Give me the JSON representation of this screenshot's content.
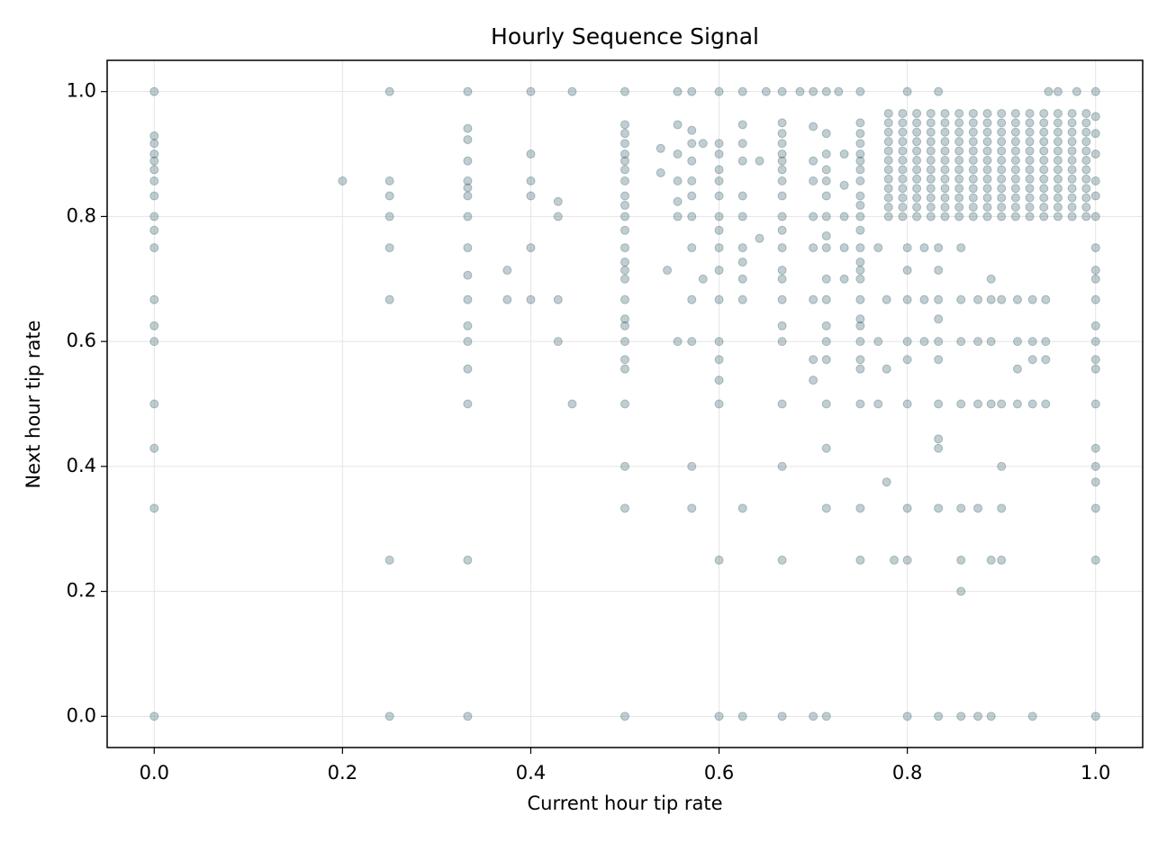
{
  "chart_data": {
    "type": "scatter",
    "title": "Hourly Sequence Signal",
    "x_label": "Current hour tip rate",
    "y_label": "Next hour tip rate",
    "color": "#335c67",
    "grid": true,
    "xlim": [
      -0.05,
      1.05
    ],
    "ylim": [
      -0.05,
      1.05
    ],
    "xticks": [
      {
        "value": 0,
        "label": "0.0"
      },
      0.2,
      0.4,
      0.6,
      0.8,
      {
        "value": 1,
        "label": "1.0"
      }
    ],
    "yticks": [
      {
        "value": 0,
        "label": "0.0"
      },
      0.2,
      0.4,
      0.6,
      0.8,
      {
        "value": 1,
        "label": "1.0"
      }
    ],
    "x": [
      0,
      0,
      0,
      0,
      0,
      0,
      0,
      0,
      0,
      0,
      0,
      0,
      0,
      0,
      0,
      0,
      0,
      0,
      0.2,
      0.25,
      0.25,
      0.25,
      0.25,
      0.25,
      0.25,
      0.25,
      0.25,
      0.333,
      0.333,
      0.333,
      0.333,
      0.333,
      0.333,
      0.333,
      0.333,
      0.333,
      0.333,
      0.333,
      0.333,
      0.333,
      0.333,
      0.333,
      0.333,
      0.333,
      0.375,
      0.375,
      0.4,
      0.4,
      0.4,
      0.4,
      0.4,
      0.4,
      0.429,
      0.429,
      0.429,
      0.429,
      0.444,
      0.444,
      0.5,
      0.5,
      0.5,
      0.5,
      0.5,
      0.5,
      0.5,
      0.5,
      0.5,
      0.5,
      0.5,
      0.5,
      0.5,
      0.5,
      0.5,
      0.5,
      0.5,
      0.5,
      0.5,
      0.5,
      0.5,
      0.5,
      0.5,
      0.5,
      0.5,
      0.5,
      0.538,
      0.538,
      0.545,
      0.556,
      0.556,
      0.556,
      0.556,
      0.556,
      0.556,
      0.556,
      0.571,
      0.571,
      0.571,
      0.571,
      0.571,
      0.571,
      0.571,
      0.571,
      0.571,
      0.571,
      0.571,
      0.571,
      0.583,
      0.583,
      0.6,
      0.6,
      0.6,
      0.6,
      0.6,
      0.6,
      0.6,
      0.6,
      0.6,
      0.6,
      0.6,
      0.6,
      0.6,
      0.6,
      0.6,
      0.6,
      0.6,
      0.625,
      0.625,
      0.625,
      0.625,
      0.625,
      0.625,
      0.625,
      0.625,
      0.625,
      0.625,
      0.625,
      0.625,
      0.643,
      0.643,
      0.667,
      0.667,
      0.667,
      0.667,
      0.667,
      0.667,
      0.667,
      0.667,
      0.667,
      0.667,
      0.667,
      0.667,
      0.667,
      0.667,
      0.667,
      0.667,
      0.667,
      0.667,
      0.667,
      0.667,
      0.667,
      0.7,
      0.7,
      0.7,
      0.7,
      0.7,
      0.7,
      0.7,
      0.7,
      0.7,
      0.7,
      0.714,
      0.714,
      0.714,
      0.714,
      0.714,
      0.714,
      0.714,
      0.714,
      0.714,
      0.714,
      0.714,
      0.714,
      0.714,
      0.714,
      0.714,
      0.714,
      0.714,
      0.714,
      0.733,
      0.733,
      0.733,
      0.733,
      0.733,
      0.75,
      0.75,
      0.75,
      0.75,
      0.75,
      0.75,
      0.75,
      0.75,
      0.75,
      0.75,
      0.75,
      0.75,
      0.75,
      0.75,
      0.75,
      0.75,
      0.75,
      0.75,
      0.75,
      0.75,
      0.75,
      0.75,
      0.75,
      0.75,
      0.75,
      0.769,
      0.769,
      0.769,
      0.778,
      0.778,
      0.778,
      0.786,
      0.8,
      0.8,
      0.8,
      0.8,
      0.8,
      0.8,
      0.8,
      0.8,
      0.8,
      0.8,
      0.818,
      0.818,
      0.818,
      0.833,
      0.833,
      0.833,
      0.833,
      0.833,
      0.833,
      0.833,
      0.833,
      0.833,
      0.833,
      0.833,
      0.833,
      0.857,
      0.857,
      0.857,
      0.857,
      0.857,
      0.857,
      0.857,
      0.857,
      0.875,
      0.875,
      0.875,
      0.875,
      0.875,
      0.889,
      0.889,
      0.889,
      0.889,
      0.889,
      0.889,
      0.9,
      0.9,
      0.9,
      0.9,
      0.9,
      0.917,
      0.917,
      0.917,
      0.917,
      0.933,
      0.933,
      0.933,
      0.933,
      0.933,
      0.947,
      0.947,
      0.947,
      0.947,
      1,
      1,
      1,
      1,
      1,
      1,
      1,
      1,
      1,
      1,
      1,
      1,
      1,
      1,
      1,
      1,
      1,
      1,
      1,
      1,
      1,
      1,
      0.65,
      0.686,
      0.727,
      0.95,
      0.96,
      0.98,
      0.78,
      0.795,
      0.81,
      0.825,
      0.84,
      0.855,
      0.87,
      0.885,
      0.9,
      0.915,
      0.93,
      0.945,
      0.96,
      0.975,
      0.99,
      0.78,
      0.795,
      0.81,
      0.825,
      0.84,
      0.855,
      0.87,
      0.885,
      0.9,
      0.915,
      0.93,
      0.945,
      0.96,
      0.975,
      0.99,
      0.78,
      0.795,
      0.81,
      0.825,
      0.84,
      0.855,
      0.87,
      0.885,
      0.9,
      0.915,
      0.93,
      0.945,
      0.96,
      0.975,
      0.99,
      0.78,
      0.795,
      0.81,
      0.825,
      0.84,
      0.855,
      0.87,
      0.885,
      0.9,
      0.915,
      0.93,
      0.945,
      0.96,
      0.975,
      0.99,
      0.78,
      0.795,
      0.81,
      0.825,
      0.84,
      0.855,
      0.87,
      0.885,
      0.9,
      0.915,
      0.93,
      0.945,
      0.96,
      0.975,
      0.99,
      0.78,
      0.795,
      0.81,
      0.825,
      0.84,
      0.855,
      0.87,
      0.885,
      0.9,
      0.915,
      0.93,
      0.945,
      0.96,
      0.975,
      0.99,
      0.78,
      0.795,
      0.81,
      0.825,
      0.84,
      0.855,
      0.87,
      0.885,
      0.9,
      0.915,
      0.93,
      0.945,
      0.96,
      0.975,
      0.99,
      0.78,
      0.795,
      0.81,
      0.825,
      0.84,
      0.855,
      0.87,
      0.885,
      0.9,
      0.915,
      0.93,
      0.945,
      0.96,
      0.975,
      0.99,
      0.78,
      0.795,
      0.81,
      0.825,
      0.84,
      0.855,
      0.87,
      0.885,
      0.9,
      0.915,
      0.93,
      0.945,
      0.96,
      0.975,
      0.99,
      0.78,
      0.795,
      0.81,
      0.825,
      0.84,
      0.855,
      0.87,
      0.885,
      0.9,
      0.915,
      0.93,
      0.945,
      0.96,
      0.975,
      0.99,
      0.78,
      0.795,
      0.81,
      0.825,
      0.84,
      0.855,
      0.87,
      0.885,
      0.9,
      0.915,
      0.93,
      0.945,
      0.96,
      0.975,
      0.99,
      0.78,
      0.795,
      0.81,
      0.825,
      0.84,
      0.855,
      0.87,
      0.885,
      0.9,
      0.915,
      0.93,
      0.945,
      0.96,
      0.975,
      0.99
    ],
    "values": [
      1,
      0.929,
      0.917,
      0.9,
      0.889,
      0.875,
      0.857,
      0.833,
      0.8,
      0.778,
      0.75,
      0.667,
      0.625,
      0.6,
      0.5,
      0.429,
      0.333,
      0,
      0.857,
      1,
      0.857,
      0.833,
      0.8,
      0.75,
      0.667,
      0.25,
      0,
      1,
      0.941,
      0.923,
      0.889,
      0.857,
      0.846,
      0.833,
      0.8,
      0.75,
      0.706,
      0.667,
      0.625,
      0.6,
      0.556,
      0.5,
      0.25,
      0,
      0.714,
      0.667,
      1,
      0.9,
      0.857,
      0.833,
      0.75,
      0.667,
      0.824,
      0.8,
      0.667,
      0.6,
      1,
      0.5,
      1,
      0.947,
      0.933,
      0.917,
      0.9,
      0.889,
      0.875,
      0.857,
      0.833,
      0.818,
      0.8,
      0.778,
      0.75,
      0.727,
      0.714,
      0.7,
      0.667,
      0.636,
      0.625,
      0.6,
      0.571,
      0.556,
      0.5,
      0.4,
      0.333,
      0,
      0.909,
      0.87,
      0.714,
      1,
      0.947,
      0.9,
      0.857,
      0.824,
      0.8,
      0.6,
      1,
      0.938,
      0.917,
      0.889,
      0.857,
      0.833,
      0.8,
      0.75,
      0.667,
      0.6,
      0.4,
      0.333,
      0.917,
      0.7,
      1,
      0.917,
      0.9,
      0.875,
      0.857,
      0.833,
      0.8,
      0.778,
      0.75,
      0.714,
      0.667,
      0.6,
      0.571,
      0.538,
      0.5,
      0.25,
      0,
      1,
      0.947,
      0.917,
      0.889,
      0.833,
      0.8,
      0.75,
      0.727,
      0.7,
      0.667,
      0.333,
      0,
      0.889,
      0.765,
      1,
      0.95,
      0.933,
      0.917,
      0.9,
      0.889,
      0.875,
      0.857,
      0.833,
      0.8,
      0.778,
      0.75,
      0.714,
      0.7,
      0.667,
      0.625,
      0.6,
      0.5,
      0.4,
      0.25,
      0,
      1,
      0.944,
      0.889,
      0.857,
      0.8,
      0.75,
      0.667,
      0.571,
      0.538,
      0,
      1,
      0.933,
      0.9,
      0.875,
      0.857,
      0.833,
      0.8,
      0.769,
      0.75,
      0.7,
      0.667,
      0.625,
      0.6,
      0.571,
      0.5,
      0.429,
      0.333,
      0,
      0.9,
      0.85,
      0.8,
      0.75,
      0.7,
      1,
      0.95,
      0.933,
      0.917,
      0.9,
      0.889,
      0.875,
      0.857,
      0.833,
      0.818,
      0.8,
      0.778,
      0.75,
      0.727,
      0.714,
      0.7,
      0.667,
      0.636,
      0.625,
      0.6,
      0.571,
      0.556,
      0.5,
      0.333,
      0.25,
      0.75,
      0.6,
      0.5,
      0.375,
      0.667,
      0.556,
      0.25,
      1,
      0.75,
      0.714,
      0.667,
      0.6,
      0.571,
      0.5,
      0.333,
      0.25,
      0,
      0.75,
      0.667,
      0.6,
      1,
      0.75,
      0.714,
      0.667,
      0.636,
      0.6,
      0.571,
      0.5,
      0.444,
      0.429,
      0.333,
      0,
      0.75,
      0.667,
      0.6,
      0.5,
      0.333,
      0.25,
      0.2,
      0,
      0.667,
      0.6,
      0.5,
      0.333,
      0,
      0.7,
      0.667,
      0.6,
      0.5,
      0.25,
      0,
      0.667,
      0.5,
      0.4,
      0.333,
      0.25,
      0.667,
      0.6,
      0.556,
      0.5,
      0.667,
      0.6,
      0.571,
      0.5,
      0,
      0.667,
      0.6,
      0.571,
      0.5,
      1,
      0.96,
      0.933,
      0.9,
      0.857,
      0.833,
      0.8,
      0.75,
      0.714,
      0.7,
      0.667,
      0.625,
      0.6,
      0.571,
      0.556,
      0.5,
      0.429,
      0.4,
      0.375,
      0.333,
      0.25,
      0,
      1,
      1,
      1,
      1,
      1,
      1,
      0.8,
      0.8,
      0.8,
      0.8,
      0.8,
      0.8,
      0.8,
      0.8,
      0.8,
      0.8,
      0.8,
      0.8,
      0.8,
      0.8,
      0.8,
      0.815,
      0.815,
      0.815,
      0.815,
      0.815,
      0.815,
      0.815,
      0.815,
      0.815,
      0.815,
      0.815,
      0.815,
      0.815,
      0.815,
      0.815,
      0.83,
      0.83,
      0.83,
      0.83,
      0.83,
      0.83,
      0.83,
      0.83,
      0.83,
      0.83,
      0.83,
      0.83,
      0.83,
      0.83,
      0.83,
      0.845,
      0.845,
      0.845,
      0.845,
      0.845,
      0.845,
      0.845,
      0.845,
      0.845,
      0.845,
      0.845,
      0.845,
      0.845,
      0.845,
      0.845,
      0.86,
      0.86,
      0.86,
      0.86,
      0.86,
      0.86,
      0.86,
      0.86,
      0.86,
      0.86,
      0.86,
      0.86,
      0.86,
      0.86,
      0.86,
      0.875,
      0.875,
      0.875,
      0.875,
      0.875,
      0.875,
      0.875,
      0.875,
      0.875,
      0.875,
      0.875,
      0.875,
      0.875,
      0.875,
      0.875,
      0.89,
      0.89,
      0.89,
      0.89,
      0.89,
      0.89,
      0.89,
      0.89,
      0.89,
      0.89,
      0.89,
      0.89,
      0.89,
      0.89,
      0.89,
      0.905,
      0.905,
      0.905,
      0.905,
      0.905,
      0.905,
      0.905,
      0.905,
      0.905,
      0.905,
      0.905,
      0.905,
      0.905,
      0.905,
      0.905,
      0.92,
      0.92,
      0.92,
      0.92,
      0.92,
      0.92,
      0.92,
      0.92,
      0.92,
      0.92,
      0.92,
      0.92,
      0.92,
      0.92,
      0.92,
      0.935,
      0.935,
      0.935,
      0.935,
      0.935,
      0.935,
      0.935,
      0.935,
      0.935,
      0.935,
      0.935,
      0.935,
      0.935,
      0.935,
      0.935,
      0.95,
      0.95,
      0.95,
      0.95,
      0.95,
      0.95,
      0.95,
      0.95,
      0.95,
      0.95,
      0.95,
      0.95,
      0.95,
      0.95,
      0.95,
      0.965,
      0.965,
      0.965,
      0.965,
      0.965,
      0.965,
      0.965,
      0.965,
      0.965,
      0.965,
      0.965,
      0.965,
      0.965,
      0.965,
      0.965
    ]
  }
}
